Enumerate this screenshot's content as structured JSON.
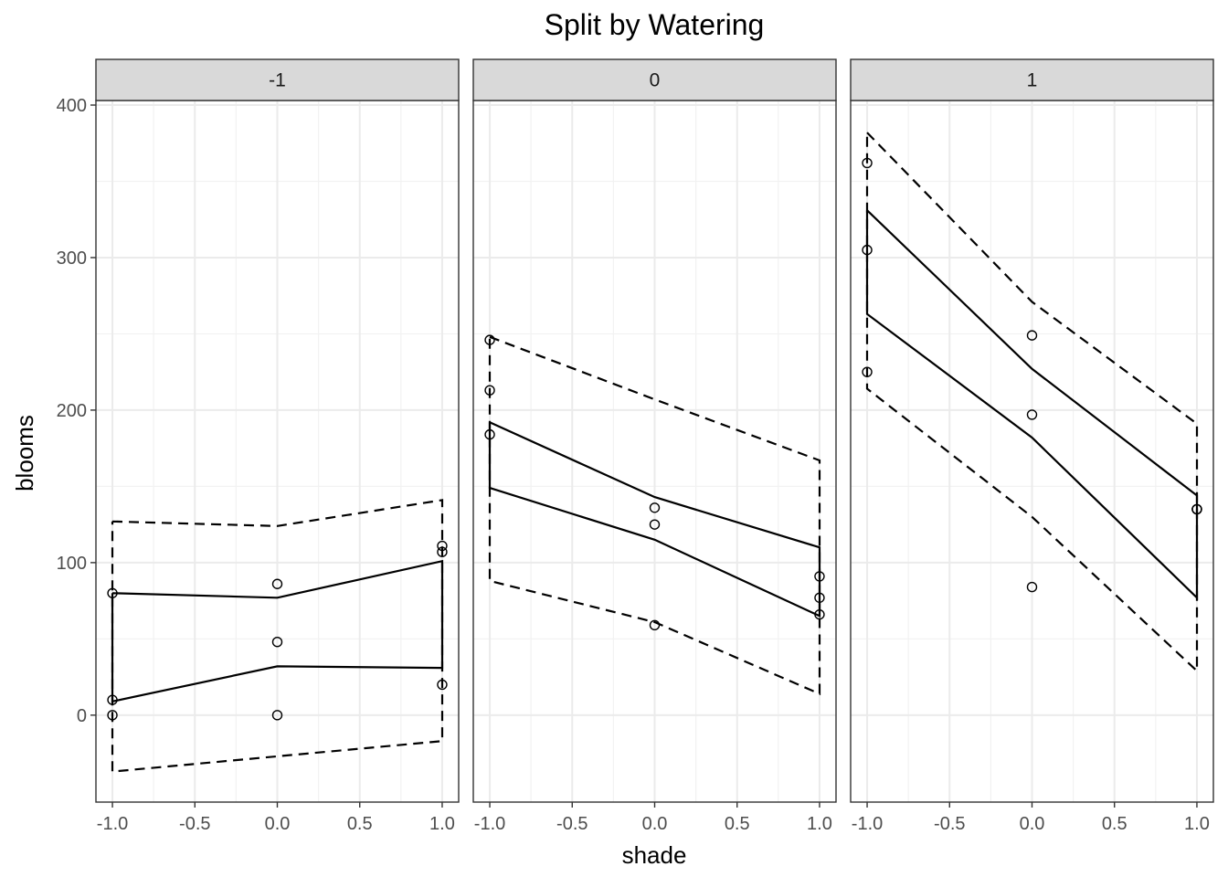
{
  "chart_data": {
    "type": "line",
    "title": "Split by Watering",
    "xlabel": "shade",
    "ylabel": "blooms",
    "xlim": [
      -1.1,
      1.1
    ],
    "ylim": [
      -57,
      403
    ],
    "x_ticks": [
      -1.0,
      -0.5,
      0.0,
      0.5,
      1.0
    ],
    "x_tick_labels": [
      "-1.0",
      "-0.5",
      "0.0",
      "0.5",
      "1.0"
    ],
    "y_ticks": [
      0,
      100,
      200,
      300,
      400
    ],
    "y_tick_labels": [
      "0",
      "100",
      "200",
      "300",
      "400"
    ],
    "grid": true,
    "facet_variable": "water",
    "panels": [
      {
        "strip_label": "-1",
        "points": [
          [
            -1,
            80
          ],
          [
            -1,
            10
          ],
          [
            -1,
            0
          ],
          [
            0,
            86
          ],
          [
            0,
            48
          ],
          [
            0,
            0
          ],
          [
            1,
            111
          ],
          [
            1,
            107
          ],
          [
            1,
            20
          ]
        ],
        "inner_upper": [
          [
            -1,
            80
          ],
          [
            0,
            77
          ],
          [
            1,
            101
          ]
        ],
        "inner_lower": [
          [
            -1,
            9
          ],
          [
            0,
            32
          ],
          [
            1,
            31
          ]
        ],
        "outer_upper": [
          [
            -1,
            127
          ],
          [
            0,
            124
          ],
          [
            1,
            141
          ]
        ],
        "outer_lower": [
          [
            -1,
            -37
          ],
          [
            0,
            -27
          ],
          [
            1,
            -17
          ]
        ]
      },
      {
        "strip_label": "0",
        "points": [
          [
            -1,
            246
          ],
          [
            -1,
            213
          ],
          [
            -1,
            184
          ],
          [
            0,
            136
          ],
          [
            0,
            125
          ],
          [
            0,
            59
          ],
          [
            1,
            91
          ],
          [
            1,
            77
          ],
          [
            1,
            66
          ]
        ],
        "inner_upper": [
          [
            -1,
            192
          ],
          [
            0,
            143
          ],
          [
            1,
            110
          ]
        ],
        "inner_lower": [
          [
            -1,
            149
          ],
          [
            0,
            115
          ],
          [
            1,
            65
          ]
        ],
        "outer_upper": [
          [
            -1,
            248
          ],
          [
            0,
            207
          ],
          [
            1,
            167
          ]
        ],
        "outer_lower": [
          [
            -1,
            88
          ],
          [
            0,
            61
          ],
          [
            1,
            14
          ]
        ]
      },
      {
        "strip_label": "1",
        "points": [
          [
            -1,
            362
          ],
          [
            -1,
            305
          ],
          [
            -1,
            225
          ],
          [
            0,
            249
          ],
          [
            0,
            197
          ],
          [
            0,
            84
          ],
          [
            1,
            135
          ],
          [
            1,
            135
          ],
          [
            1,
            135
          ]
        ],
        "inner_upper": [
          [
            -1,
            331
          ],
          [
            0,
            227
          ],
          [
            1,
            144
          ]
        ],
        "inner_lower": [
          [
            -1,
            263
          ],
          [
            0,
            182
          ],
          [
            1,
            77
          ]
        ],
        "outer_upper": [
          [
            -1,
            382
          ],
          [
            0,
            271
          ],
          [
            1,
            191
          ]
        ],
        "outer_lower": [
          [
            -1,
            214
          ],
          [
            0,
            130
          ],
          [
            1,
            29
          ]
        ]
      }
    ]
  }
}
